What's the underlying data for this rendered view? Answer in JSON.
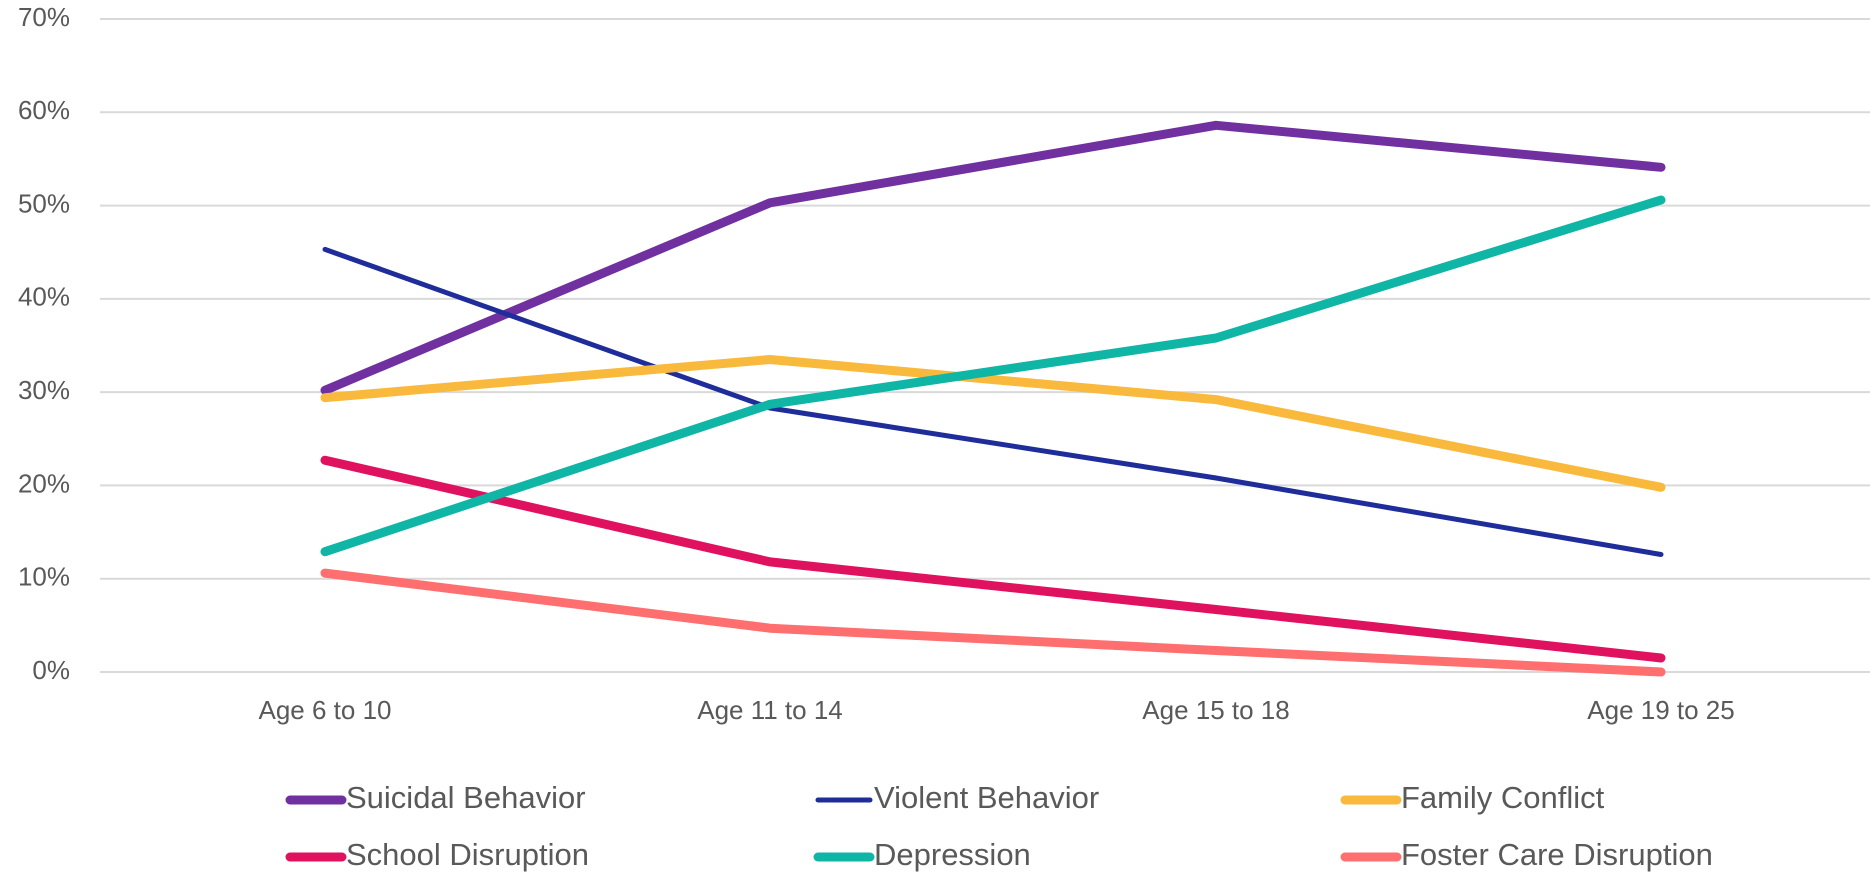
{
  "chart_data": {
    "type": "line",
    "title": "",
    "xlabel": "",
    "ylabel": "",
    "categories": [
      "Age 6 to 10",
      "Age 11 to 14",
      "Age 15 to 18",
      "Age 19 to 25"
    ],
    "ylim": [
      0,
      70
    ],
    "yticks": [
      "0%",
      "10%",
      "20%",
      "30%",
      "40%",
      "50%",
      "60%",
      "70%"
    ],
    "grid": true,
    "legend_position": "bottom",
    "series": [
      {
        "name": "Suicidal Behavior",
        "color": "#7030A0",
        "values": [
          30.2,
          50.3,
          58.6,
          54.1
        ]
      },
      {
        "name": "Violent Behavior",
        "color": "#1F2D9B",
        "values": [
          45.3,
          28.3,
          20.8,
          12.6
        ]
      },
      {
        "name": "Family Conflict",
        "color": "#F9B93C",
        "values": [
          29.4,
          33.5,
          29.2,
          19.8
        ]
      },
      {
        "name": "School Disruption",
        "color": "#E0115F",
        "values": [
          22.7,
          11.8,
          6.7,
          1.5
        ]
      },
      {
        "name": "Depression",
        "color": "#0FB5A5",
        "values": [
          12.9,
          28.7,
          35.8,
          50.6
        ]
      },
      {
        "name": "Foster Care Disruption",
        "color": "#FF6F6F",
        "values": [
          10.6,
          4.7,
          2.3,
          0.0
        ]
      }
    ]
  }
}
